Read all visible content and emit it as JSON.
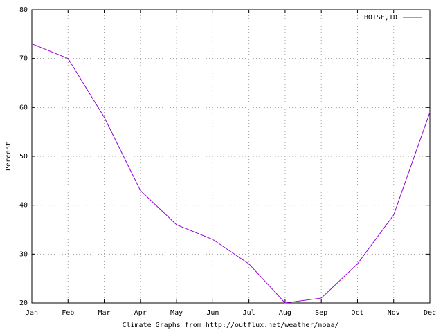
{
  "chart_data": {
    "type": "line",
    "y_label": "Percent",
    "x_label": "Climate Graphs from http://outflux.net/weather/noaa/",
    "categories": [
      "Jan",
      "Feb",
      "Mar",
      "Apr",
      "May",
      "Jun",
      "Jul",
      "Aug",
      "Sep",
      "Oct",
      "Nov",
      "Dec"
    ],
    "series": [
      {
        "name": "BOISE,ID",
        "color": "#9400d3",
        "values": [
          73,
          70,
          58,
          43,
          36,
          33,
          28,
          20,
          21,
          28,
          38,
          59
        ]
      }
    ],
    "ylim": [
      20,
      80
    ],
    "yticks": [
      20,
      30,
      40,
      50,
      60,
      70,
      80
    ],
    "grid": true,
    "legend": "top-right"
  }
}
